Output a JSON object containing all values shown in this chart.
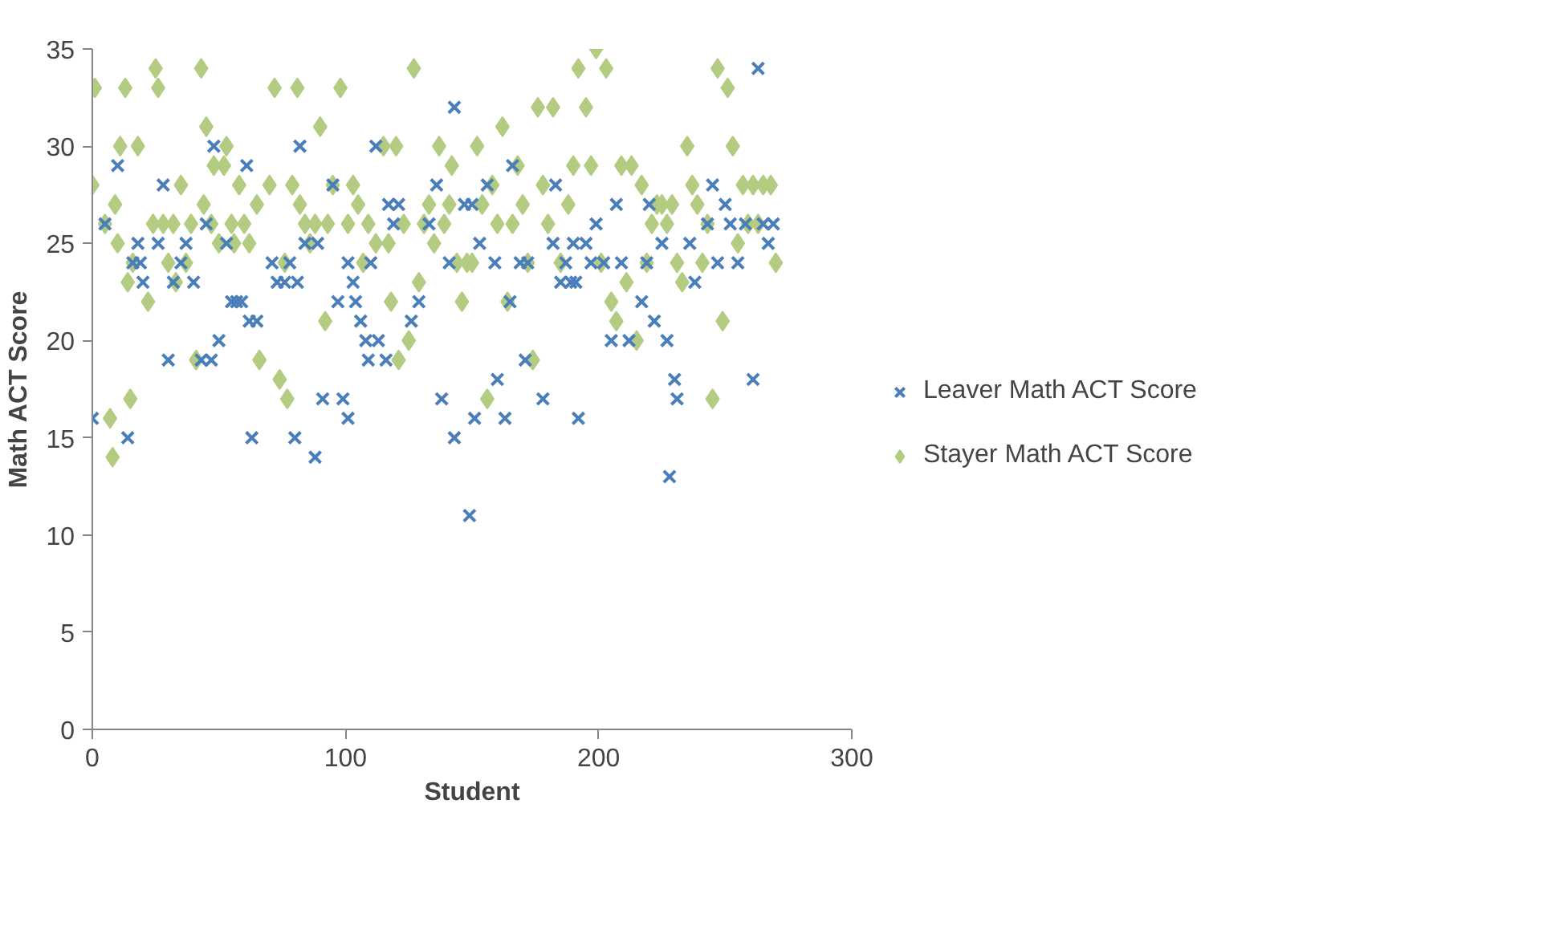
{
  "chart_data": {
    "type": "scatter",
    "xlabel": "Student",
    "ylabel": "Math ACT Score",
    "xlim": [
      0,
      300
    ],
    "xticks": [
      0,
      100,
      200,
      300
    ],
    "ylim": [
      0,
      35
    ],
    "yticks": [
      0,
      5,
      10,
      15,
      20,
      25,
      30,
      35
    ],
    "grid": false,
    "legend": "right",
    "series": [
      {
        "name": "Leaver Math ACT Score",
        "color": "#4a7ebb",
        "marker": "cross",
        "x": [
          0,
          5,
          10,
          14,
          16,
          18,
          19,
          20,
          26,
          28,
          30,
          32,
          35,
          37,
          40,
          43,
          45,
          47,
          48,
          50,
          53,
          55,
          57,
          59,
          61,
          62,
          63,
          65,
          71,
          73,
          76,
          78,
          80,
          81,
          82,
          84,
          88,
          89,
          91,
          95,
          97,
          99,
          101,
          101,
          103,
          104,
          106,
          108,
          109,
          110,
          112,
          113,
          116,
          117,
          119,
          121,
          126,
          129,
          133,
          136,
          138,
          141,
          143,
          143,
          147,
          149,
          150,
          151,
          153,
          156,
          159,
          160,
          163,
          165,
          166,
          169,
          171,
          172,
          178,
          182,
          183,
          185,
          187,
          189,
          190,
          191,
          192,
          195,
          197,
          199,
          202,
          205,
          207,
          209,
          212,
          217,
          219,
          220,
          222,
          225,
          227,
          228,
          230,
          231,
          236,
          238,
          243,
          245,
          247,
          250,
          252,
          255,
          258,
          261,
          263,
          265,
          267,
          269
        ],
        "values": [
          16,
          26,
          29,
          15,
          24,
          25,
          24,
          23,
          25,
          28,
          19,
          23,
          24,
          25,
          23,
          19,
          26,
          19,
          30,
          20,
          25,
          22,
          22,
          22,
          29,
          21,
          15,
          21,
          24,
          23,
          23,
          24,
          15,
          23,
          30,
          25,
          14,
          25,
          17,
          28,
          22,
          17,
          16,
          24,
          23,
          22,
          21,
          20,
          19,
          24,
          30,
          20,
          19,
          27,
          26,
          27,
          21,
          22,
          26,
          28,
          17,
          24,
          15,
          32,
          27,
          11,
          27,
          16,
          25,
          28,
          24,
          18,
          16,
          22,
          29,
          24,
          19,
          24,
          17,
          25,
          28,
          23,
          24,
          23,
          25,
          23,
          16,
          25,
          24,
          26,
          24,
          20,
          27,
          24,
          20,
          22,
          24,
          27,
          21,
          25,
          20,
          13,
          18,
          17,
          25,
          23,
          26,
          28,
          24,
          27,
          26,
          24,
          26,
          18,
          34,
          26,
          25,
          26
        ]
      },
      {
        "name": "Stayer Math ACT Score",
        "color": "#b3cc82",
        "marker": "diamond",
        "x": [
          0,
          1,
          5,
          7,
          8,
          9,
          10,
          11,
          13,
          14,
          15,
          16,
          18,
          22,
          24,
          25,
          26,
          28,
          30,
          32,
          33,
          35,
          37,
          39,
          41,
          43,
          44,
          45,
          47,
          48,
          50,
          52,
          53,
          55,
          56,
          58,
          60,
          62,
          65,
          66,
          70,
          72,
          74,
          76,
          77,
          79,
          81,
          82,
          84,
          86,
          88,
          90,
          92,
          93,
          95,
          98,
          101,
          103,
          105,
          107,
          109,
          112,
          115,
          117,
          118,
          120,
          121,
          123,
          125,
          127,
          129,
          131,
          133,
          135,
          137,
          139,
          141,
          142,
          144,
          146,
          148,
          150,
          152,
          154,
          156,
          158,
          160,
          162,
          164,
          166,
          168,
          170,
          172,
          174,
          176,
          178,
          180,
          182,
          185,
          188,
          190,
          192,
          195,
          197,
          199,
          201,
          203,
          205,
          207,
          209,
          211,
          213,
          215,
          217,
          219,
          221,
          223,
          225,
          227,
          229,
          231,
          233,
          235,
          237,
          239,
          241,
          243,
          245,
          247,
          249,
          251,
          253,
          255,
          257,
          259,
          261,
          263,
          265,
          268,
          270
        ],
        "values": [
          28,
          33,
          26,
          16,
          14,
          27,
          25,
          30,
          33,
          23,
          17,
          24,
          30,
          22,
          26,
          34,
          33,
          26,
          24,
          26,
          23,
          28,
          24,
          26,
          19,
          34,
          27,
          31,
          26,
          29,
          25,
          29,
          30,
          26,
          25,
          28,
          26,
          25,
          27,
          19,
          28,
          33,
          18,
          24,
          17,
          28,
          33,
          27,
          26,
          25,
          26,
          31,
          21,
          26,
          28,
          33,
          26,
          28,
          27,
          24,
          26,
          25,
          30,
          25,
          22,
          30,
          19,
          26,
          20,
          34,
          23,
          26,
          27,
          25,
          30,
          26,
          27,
          29,
          24,
          22,
          24,
          24,
          30,
          27,
          17,
          28,
          26,
          31,
          22,
          26,
          29,
          27,
          24,
          19,
          32,
          28,
          26,
          32,
          24,
          27,
          29,
          34,
          32,
          29,
          35,
          24,
          34,
          22,
          21,
          29,
          23,
          29,
          20,
          28,
          24,
          26,
          27,
          27,
          26,
          27,
          24,
          23,
          30,
          28,
          27,
          24,
          26,
          17,
          34,
          21,
          33,
          30,
          25,
          28,
          26,
          28,
          26,
          28,
          28,
          24
        ]
      }
    ]
  }
}
